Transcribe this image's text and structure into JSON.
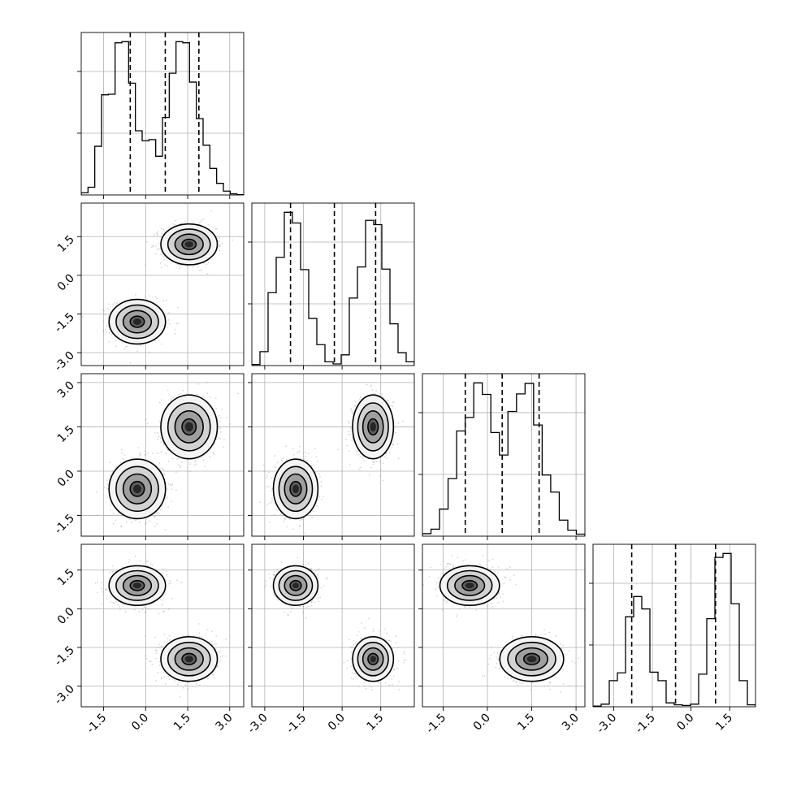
{
  "chart_data": {
    "type": "corner",
    "title": "",
    "grid": true,
    "colors": {
      "line": "#000000",
      "scatter": "#8a8a8a",
      "grid": "#b0b0b0",
      "contour_fill": [
        "#f4f4f4",
        "#d2d2d2",
        "#9f9f9f",
        "#5e5e5e",
        "#262626"
      ]
    },
    "parameters": [
      {
        "range": [
          -2.3,
          3.5
        ],
        "ticks": [
          -1.5,
          0.0,
          1.5,
          3.0
        ],
        "tick_labels": [
          "-1.5",
          "0.0",
          "1.5",
          "3.0"
        ],
        "quantiles": [
          -0.55,
          0.7,
          1.9
        ],
        "histogram": [
          20,
          70,
          440,
          905,
          910,
          1375,
          1385,
          1010,
          580,
          490,
          500,
          350,
          700,
          1100,
          1385,
          1375,
          1020,
          690,
          450,
          240,
          105,
          35,
          10,
          3
        ]
      },
      {
        "range": [
          -3.5,
          2.8
        ],
        "ticks": [
          -3.0,
          -1.5,
          0.0,
          1.5
        ],
        "tick_labels": [
          "-3.0",
          "-1.5",
          "0.0",
          "1.5"
        ],
        "quantiles": [
          -2.0,
          -0.3,
          1.3
        ],
        "histogram": [
          10,
          130,
          680,
          1010,
          1430,
          1330,
          895,
          440,
          195,
          35,
          15,
          100,
          630,
          920,
          1355,
          1315,
          900,
          390,
          120,
          35
        ]
      },
      {
        "range": [
          -2.2,
          3.3
        ],
        "ticks": [
          -1.5,
          0.0,
          1.5,
          3.0
        ],
        "tick_labels": [
          "-1.5",
          "0.0",
          "1.5",
          "3.0"
        ],
        "quantiles": [
          -0.75,
          0.5,
          1.75
        ],
        "histogram": [
          25,
          70,
          270,
          575,
          1050,
          1185,
          1530,
          1415,
          1035,
          810,
          1245,
          1420,
          1525,
          1110,
          610,
          440,
          160,
          60,
          20
        ]
      },
      {
        "range": [
          -3.8,
          2.5
        ],
        "ticks": [
          -3.0,
          -1.5,
          0.0,
          1.5
        ],
        "tick_labels": [
          "-3.0",
          "-1.5",
          "0.0",
          "1.5"
        ],
        "quantiles": [
          -2.3,
          -0.6,
          0.95
        ],
        "histogram": [
          10,
          40,
          400,
          520,
          1380,
          1690,
          1500,
          530,
          400,
          60,
          30,
          20,
          40,
          500,
          1350,
          2290,
          2350,
          1580,
          400,
          30
        ]
      }
    ],
    "modes": [
      {
        "name": "",
        "center": [
          -0.3,
          -1.8,
          -0.6,
          0.9
        ],
        "std": [
          0.42,
          0.36,
          0.42,
          0.32
        ]
      },
      {
        "name": "",
        "center": [
          1.55,
          1.2,
          1.5,
          -1.95
        ],
        "std": [
          0.42,
          0.33,
          0.45,
          0.36
        ]
      }
    ],
    "pairs": [
      {
        "x": 0,
        "y": 1
      },
      {
        "x": 0,
        "y": 2
      },
      {
        "x": 1,
        "y": 2
      },
      {
        "x": 0,
        "y": 3
      },
      {
        "x": 1,
        "y": 3
      },
      {
        "x": 2,
        "y": 3
      }
    ],
    "contour_levels_sigma": [
      0.5,
      1.0,
      1.5,
      2.0
    ]
  }
}
